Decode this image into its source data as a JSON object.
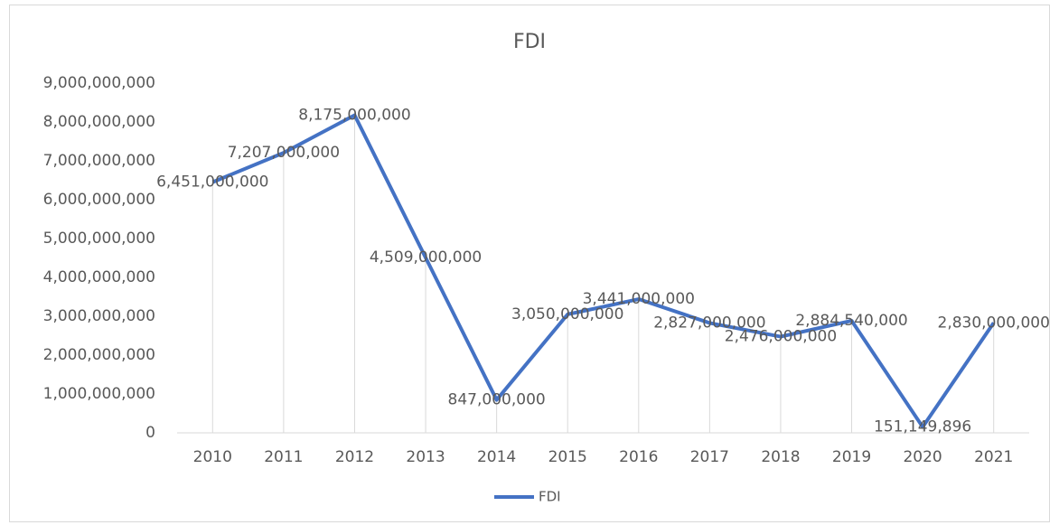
{
  "chart_data": {
    "type": "line",
    "title": "FDI",
    "categories": [
      "2010",
      "2011",
      "2012",
      "2013",
      "2014",
      "2015",
      "2016",
      "2017",
      "2018",
      "2019",
      "2020",
      "2021"
    ],
    "series": [
      {
        "name": "FDI",
        "color": "#4472c4",
        "values": [
          6451000000,
          7207000000,
          8175000000,
          4509000000,
          847000000,
          3050000000,
          3441000000,
          2827000000,
          2476000000,
          2884540000,
          151149896,
          2830000000
        ],
        "value_labels": [
          "6,451,000,000",
          "7,207,000,000",
          "8,175,000,000",
          "4,509,000,000",
          "847,000,000",
          "3,050,000,000",
          "3,441,000,000",
          "2,827,000,000",
          "2,476,000,000",
          "2,884,540,000",
          "151,149,896",
          "2,830,000,000"
        ]
      }
    ],
    "ylim": [
      0,
      9000000000
    ],
    "yticks": [
      0,
      {
        "value": 1000000000,
        "label": "1,000,000,000"
      },
      {
        "value": 2000000000,
        "label": "2,000,000,000"
      },
      {
        "value": 3000000000,
        "label": "3,000,000,000"
      },
      {
        "value": 4000000000,
        "label": "4,000,000,000"
      },
      {
        "value": 5000000000,
        "label": "5,000,000,000"
      },
      {
        "value": 6000000000,
        "label": "6,000,000,000"
      },
      {
        "value": 7000000000,
        "label": "7,000,000,000"
      },
      {
        "value": 8000000000,
        "label": "8,000,000,000"
      },
      {
        "value": 9000000000,
        "label": "9,000,000,000"
      }
    ],
    "grid": false,
    "drop_lines": true,
    "legend": "bottom"
  }
}
